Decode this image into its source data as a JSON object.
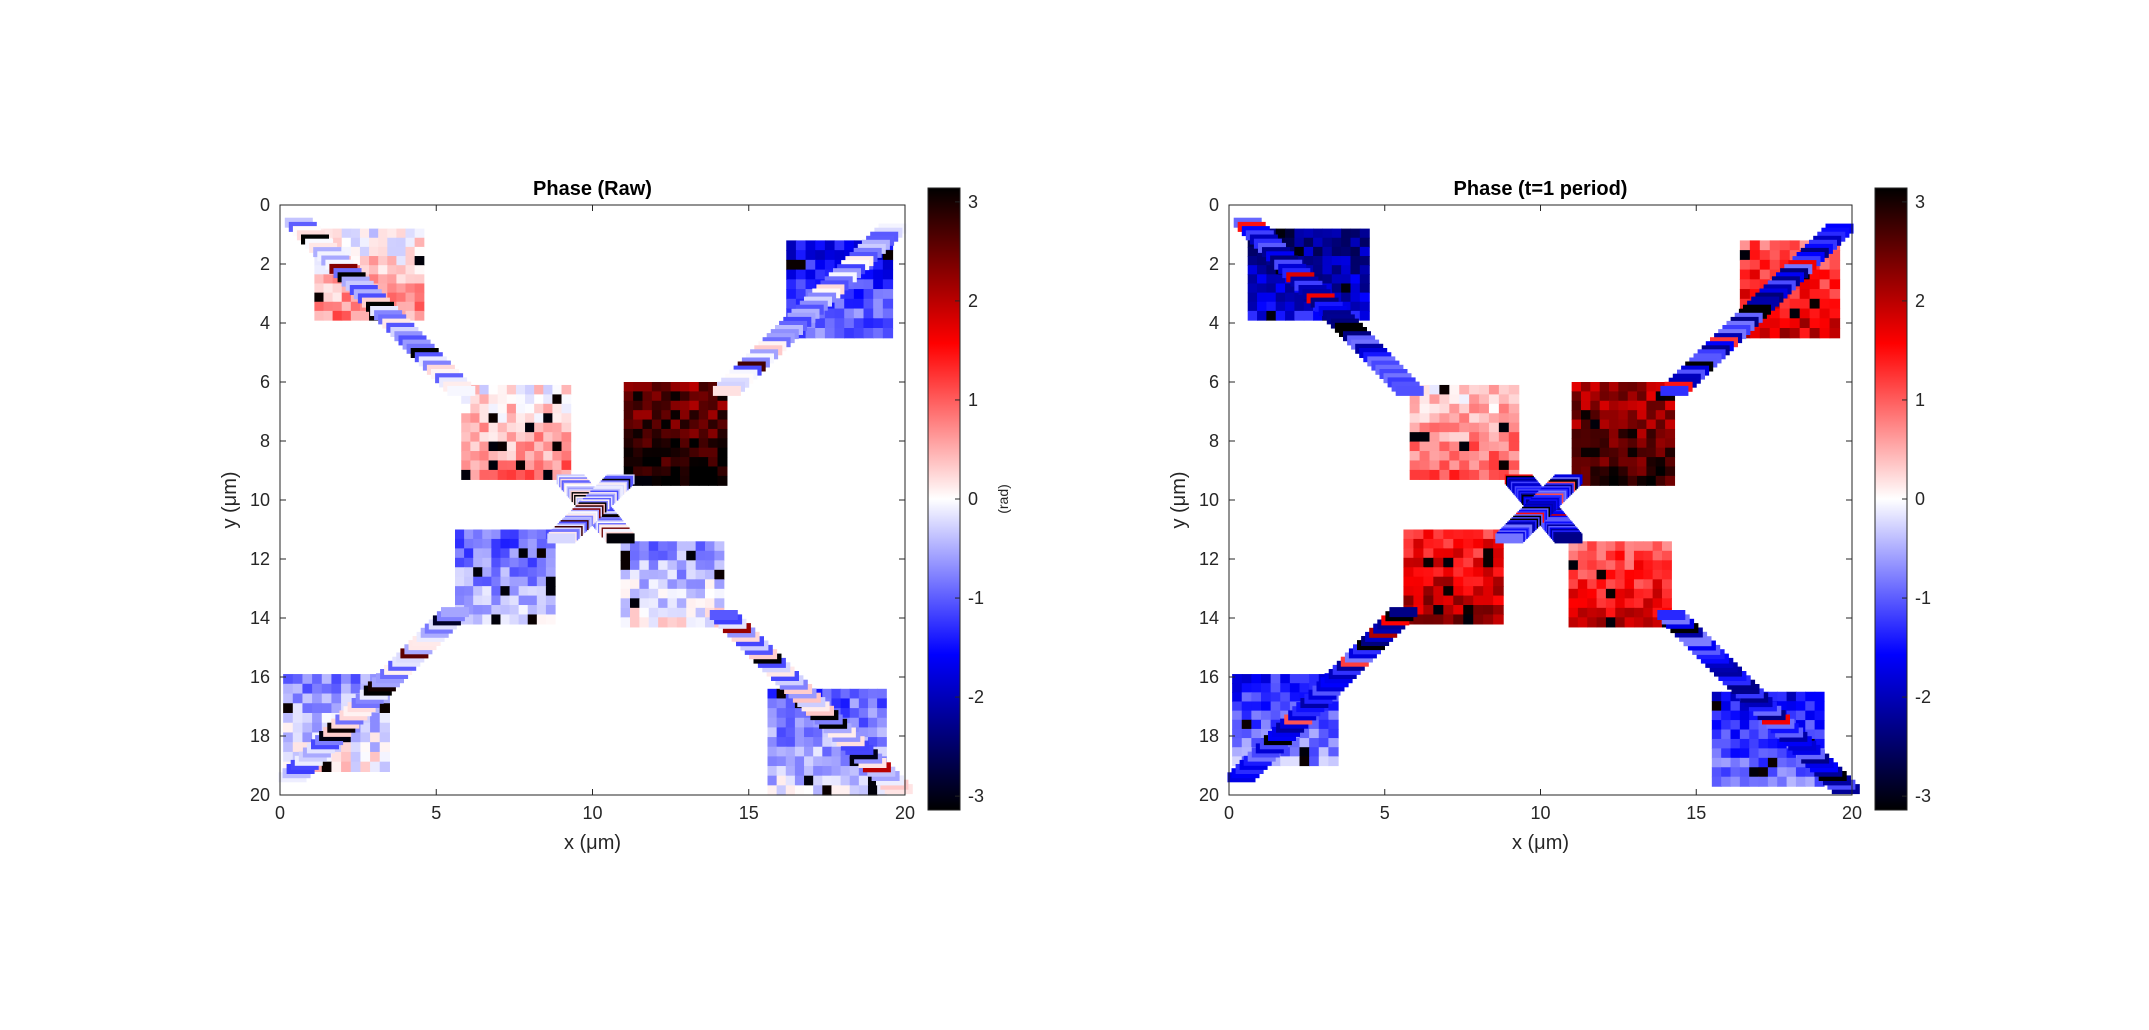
{
  "chart_data": [
    {
      "type": "heatmap",
      "title": "Phase (Raw)",
      "xlabel": "x (μm)",
      "ylabel": "y (μm)",
      "xlim": [
        0,
        20
      ],
      "ylim": [
        0,
        20
      ],
      "y_axis_direction": "reversed",
      "xticks": [
        0,
        5,
        10,
        15,
        20
      ],
      "yticks": [
        0,
        2,
        4,
        6,
        8,
        10,
        12,
        14,
        16,
        18,
        20
      ],
      "colormap": "blue-white-red diverging",
      "colormap_stops": [
        "#000000",
        "#0000ff",
        "#ffffff",
        "#ff0000",
        "#000000"
      ],
      "color_range": [
        -3.14,
        3.14
      ],
      "colorbar": {
        "ticks": [
          -3,
          -2,
          -1,
          0,
          1,
          2,
          3
        ],
        "label": "(rad)"
      },
      "grid": false,
      "regions": [
        {
          "name": "pad top-left",
          "x": [
            1.1,
            4.6
          ],
          "y": [
            0.8,
            3.9
          ],
          "phase_approx": 0.4
        },
        {
          "name": "pad top-right",
          "x": [
            16.2,
            19.6
          ],
          "y": [
            1.2,
            4.5
          ],
          "phase_approx": -1.2
        },
        {
          "name": "pad bottom-left",
          "x": [
            0.1,
            3.5
          ],
          "y": [
            15.9,
            19.2
          ],
          "phase_approx": -0.3
        },
        {
          "name": "pad bottom-right",
          "x": [
            15.6,
            19.4
          ],
          "y": [
            16.4,
            20.0
          ],
          "phase_approx": -0.6
        },
        {
          "name": "center upper-left",
          "x": [
            5.8,
            9.3
          ],
          "y": [
            6.1,
            9.3
          ],
          "phase_approx": 0.5
        },
        {
          "name": "center upper-right",
          "x": [
            11.0,
            14.3
          ],
          "y": [
            6.0,
            9.5
          ],
          "phase_approx": 2.8
        },
        {
          "name": "center lower-left",
          "x": [
            5.6,
            8.8
          ],
          "y": [
            11.0,
            14.2
          ],
          "phase_approx": -0.6
        },
        {
          "name": "center lower-right",
          "x": [
            10.9,
            14.2
          ],
          "y": [
            11.4,
            14.3
          ],
          "phase_approx": -0.3
        }
      ]
    },
    {
      "type": "heatmap",
      "title": "Phase (t=1 period)",
      "xlabel": "x (μm)",
      "ylabel": "y (μm)",
      "xlim": [
        0,
        20
      ],
      "ylim": [
        0,
        20
      ],
      "y_axis_direction": "reversed",
      "xticks": [
        0,
        5,
        10,
        15,
        20
      ],
      "yticks": [
        0,
        2,
        4,
        6,
        8,
        10,
        12,
        14,
        16,
        18,
        20
      ],
      "colormap": "blue-white-red diverging",
      "colormap_stops": [
        "#000000",
        "#0000ff",
        "#ffffff",
        "#ff0000",
        "#000000"
      ],
      "color_range": [
        -3.14,
        3.14
      ],
      "colorbar": {
        "ticks": [
          -3,
          -2,
          -1,
          0,
          1,
          2,
          3
        ]
      },
      "grid": false,
      "regions": [
        {
          "name": "pad top-left",
          "x": [
            0.6,
            4.5
          ],
          "y": [
            0.8,
            3.9
          ],
          "phase_approx": -2.0
        },
        {
          "name": "pad top-right",
          "x": [
            16.4,
            19.6
          ],
          "y": [
            1.2,
            4.5
          ],
          "phase_approx": 1.5
        },
        {
          "name": "pad bottom-left",
          "x": [
            0.1,
            3.5
          ],
          "y": [
            15.9,
            19.0
          ],
          "phase_approx": -1.0
        },
        {
          "name": "pad bottom-right",
          "x": [
            15.5,
            19.1
          ],
          "y": [
            16.5,
            19.7
          ],
          "phase_approx": -1.2
        },
        {
          "name": "center upper-left",
          "x": [
            5.8,
            9.3
          ],
          "y": [
            6.1,
            9.3
          ],
          "phase_approx": 0.7
        },
        {
          "name": "center upper-right",
          "x": [
            11.0,
            14.3
          ],
          "y": [
            6.0,
            9.5
          ],
          "phase_approx": 2.5
        },
        {
          "name": "center lower-left",
          "x": [
            5.6,
            8.8
          ],
          "y": [
            11.0,
            14.2
          ],
          "phase_approx": 1.8
        },
        {
          "name": "center lower-right",
          "x": [
            10.9,
            14.2
          ],
          "y": [
            11.4,
            14.3
          ],
          "phase_approx": 1.5
        }
      ]
    }
  ]
}
